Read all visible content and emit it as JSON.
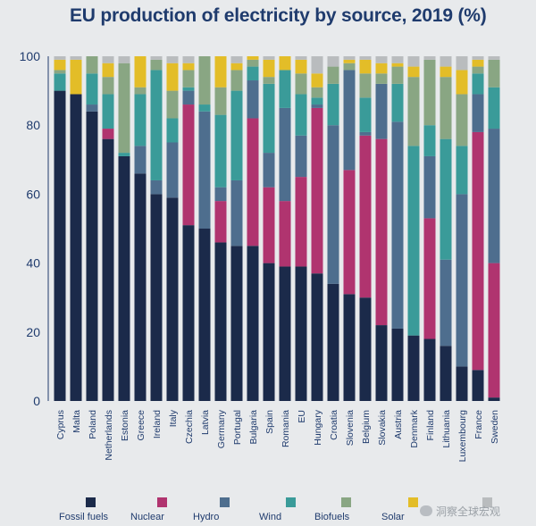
{
  "chart_data": {
    "type": "bar",
    "stacked": true,
    "title": "EU production of electricity by source, 2019 (%)",
    "ylim": [
      0,
      100
    ],
    "yticks": [
      0,
      20,
      40,
      60,
      80,
      100
    ],
    "legend_position": "bottom",
    "categories": [
      "Cyprus",
      "Malta",
      "Poland",
      "Netherlands",
      "Estonia",
      "Greece",
      "Ireland",
      "Italy",
      "Czechia",
      "Latvia",
      "Germany",
      "Portugal",
      "Bulgaria",
      "Spain",
      "Romania",
      "EU",
      "Hungary",
      "Croatia",
      "Slovenia",
      "Belgium",
      "Slovakia",
      "Austria",
      "Denmark",
      "Finland",
      "Lithuania",
      "Luxembourg",
      "France",
      "Sweden"
    ],
    "series": [
      {
        "name": "Fossil fuels",
        "color": "#1b2a4a",
        "values": [
          90,
          89,
          84,
          76,
          71,
          66,
          60,
          59,
          51,
          50,
          46,
          45,
          45,
          40,
          39,
          39,
          37,
          34,
          31,
          30,
          22,
          21,
          19,
          18,
          16,
          10,
          9,
          1
        ]
      },
      {
        "name": "Nuclear",
        "color": "#b0346f",
        "values": [
          0,
          0,
          0,
          3,
          0,
          0,
          0,
          0,
          35,
          0,
          12,
          0,
          37,
          22,
          19,
          26,
          48,
          0,
          36,
          47,
          54,
          0,
          0,
          35,
          0,
          0,
          69,
          39
        ]
      },
      {
        "name": "Hydro",
        "color": "#4e6e8e",
        "values": [
          0,
          0,
          2,
          0,
          0,
          8,
          4,
          16,
          4,
          34,
          4,
          19,
          11,
          10,
          27,
          12,
          1,
          46,
          29,
          1,
          16,
          60,
          0,
          18,
          25,
          50,
          11,
          39
        ]
      },
      {
        "name": "Wind",
        "color": "#3a9b99",
        "values": [
          5,
          0,
          9,
          10,
          1,
          15,
          32,
          7,
          1,
          2,
          21,
          26,
          4,
          20,
          11,
          12,
          2,
          12,
          0,
          10,
          0,
          11,
          55,
          9,
          35,
          14,
          6,
          12
        ]
      },
      {
        "name": "Biofuels",
        "color": "#89a683",
        "values": [
          1,
          0,
          5,
          5,
          26,
          2,
          3,
          8,
          5,
          14,
          8,
          6,
          2,
          2,
          0,
          6,
          3,
          5,
          2,
          7,
          3,
          5,
          20,
          19,
          18,
          15,
          2,
          8
        ]
      },
      {
        "name": "Solar",
        "color": "#e3bd28",
        "values": [
          3,
          10,
          0,
          4,
          0,
          9,
          0,
          8,
          2,
          0,
          9,
          2,
          1,
          5,
          4,
          4,
          4,
          0,
          1,
          4,
          3,
          1,
          3,
          0,
          3,
          7,
          2,
          0
        ]
      },
      {
        "name": "",
        "color": "#b9bcbe",
        "values": [
          1,
          1,
          0,
          2,
          2,
          0,
          1,
          2,
          2,
          0,
          0,
          2,
          0,
          1,
          0,
          1,
          5,
          3,
          1,
          1,
          2,
          2,
          3,
          1,
          3,
          4,
          1,
          1
        ]
      }
    ]
  }
}
